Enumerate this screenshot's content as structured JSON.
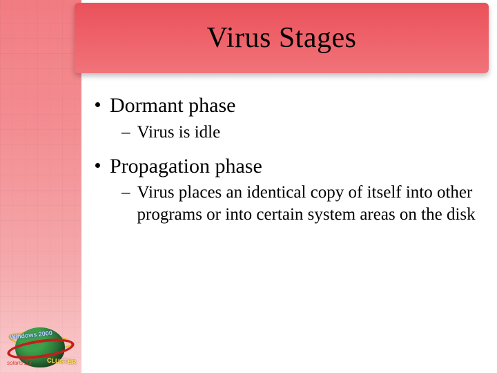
{
  "slide": {
    "title": "Virus Stages",
    "title_fontsize": 42,
    "title_color": "#000000",
    "title_bar_gradient": [
      "#e9515a",
      "#ee6068",
      "#f1737a"
    ],
    "left_band_gradient": [
      "#f07278",
      "#f3858a",
      "#f5a1a4",
      "#f9c8ca"
    ],
    "background_color": "#ffffff",
    "body_font": "Georgia, Times New Roman, serif",
    "bullets": [
      {
        "level": 1,
        "text": "Dormant phase",
        "fontsize": 30,
        "children": [
          {
            "level": 2,
            "text": "Virus is idle",
            "fontsize": 25
          }
        ]
      },
      {
        "level": 1,
        "text": "Propagation phase",
        "fontsize": 30,
        "children": [
          {
            "level": 2,
            "text": "Virus places an identical copy of itself into other programs or into certain system areas on the disk",
            "fontsize": 25
          }
        ]
      }
    ],
    "corner_badge": {
      "labels": [
        "Windows 2000",
        "CLUSTER",
        "solaris 2.x"
      ],
      "globe_color": "#2d7a3b",
      "ring_color": "#c21e1e",
      "ring2_color": "#e9b93b"
    }
  }
}
